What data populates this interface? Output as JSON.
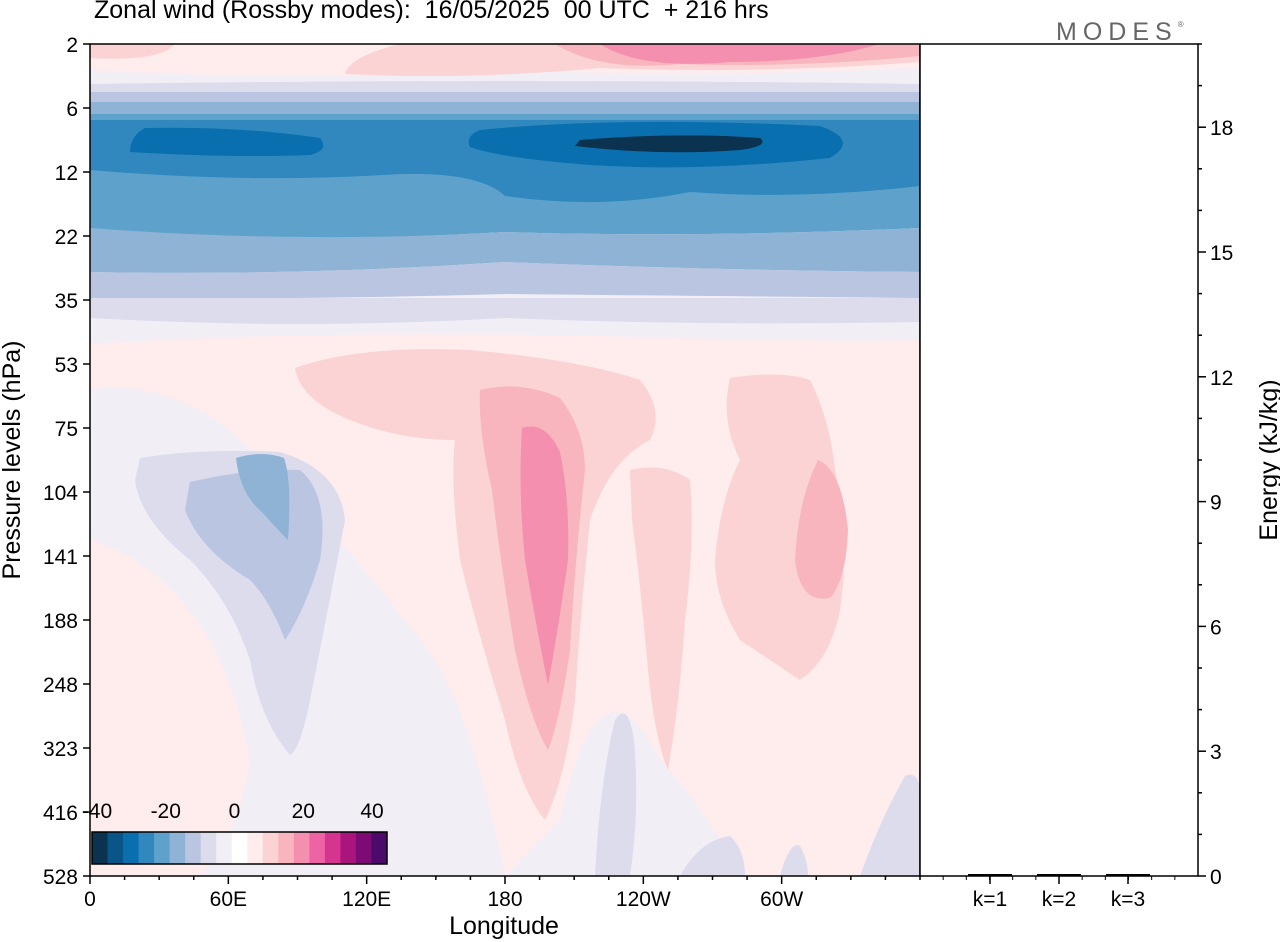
{
  "header": {
    "title": "Zonal wind (Rossby modes):  16/05/2025  00 UTC  + 216 hrs",
    "brand": "MODES",
    "brand_mark": "®"
  },
  "chart_data": [
    {
      "type": "heatmap",
      "title": "Zonal wind (Rossby modes):  16/05/2025  00 UTC  + 216 hrs",
      "xlabel": "Longitude",
      "ylabel": "Pressure levels (hPa)",
      "x_ticks": [
        "0",
        "60E",
        "120E",
        "180",
        "120W",
        "60W"
      ],
      "x_tick_values": [
        0,
        60,
        120,
        180,
        240,
        300
      ],
      "xlim": [
        0,
        360
      ],
      "y_ticks": [
        "2",
        "6",
        "12",
        "22",
        "35",
        "53",
        "75",
        "104",
        "141",
        "188",
        "248",
        "323",
        "416",
        "528"
      ],
      "y_scale": "model levels (log-like, top = 2 hPa, bottom = 528 hPa)",
      "colorbar": {
        "tick_labels": [
          "-40",
          "-20",
          "0",
          "20",
          "40"
        ],
        "tick_values": [
          -40,
          -20,
          0,
          20,
          40
        ],
        "colors": [
          "#0b3350",
          "#0a5587",
          "#0a6fae",
          "#3088bf",
          "#5ea2cc",
          "#8fb3d4",
          "#b9c5e1",
          "#dcdced",
          "#f2eef6",
          "#ffffff",
          "#ffecec",
          "#fbd3d4",
          "#f8b5bd",
          "#f58faf",
          "#ed63a3",
          "#d6358f",
          "#a9157c",
          "#7c0b76",
          "#4c0a6b"
        ]
      },
      "features": [
        {
          "name": "stratospheric easterly jet",
          "lon_range": [
            10,
            340
          ],
          "plev_range": [
            6,
            25
          ],
          "peak_value": -40
        },
        {
          "name": "upper-stratosphere westerlies",
          "lon_range": [
            0,
            360
          ],
          "plev_range": [
            2,
            4
          ],
          "peak_value": 25
        },
        {
          "name": "Indian Ocean easterlies",
          "lon_range": [
            20,
            110
          ],
          "plev_range": [
            75,
            330
          ],
          "peak_value": -20
        },
        {
          "name": "dateline westerlies",
          "lon_range": [
            160,
            230
          ],
          "plev_range": [
            53,
            420
          ],
          "peak_value": 25
        },
        {
          "name": "eastern Pacific westerlies",
          "lon_range": [
            270,
            340
          ],
          "plev_range": [
            53,
            260
          ],
          "peak_value": 15
        }
      ],
      "grid": false
    },
    {
      "type": "bar",
      "categories": [
        "k=1",
        "k=2",
        "k=3"
      ],
      "values": [
        0.02,
        0.01,
        0.01
      ],
      "ylabel": "Energy (kJ/kg)",
      "y_ticks": [
        "0",
        "3",
        "6",
        "9",
        "12",
        "15",
        "18"
      ],
      "ylim": [
        0,
        20
      ],
      "y_axis_side": "right"
    }
  ]
}
